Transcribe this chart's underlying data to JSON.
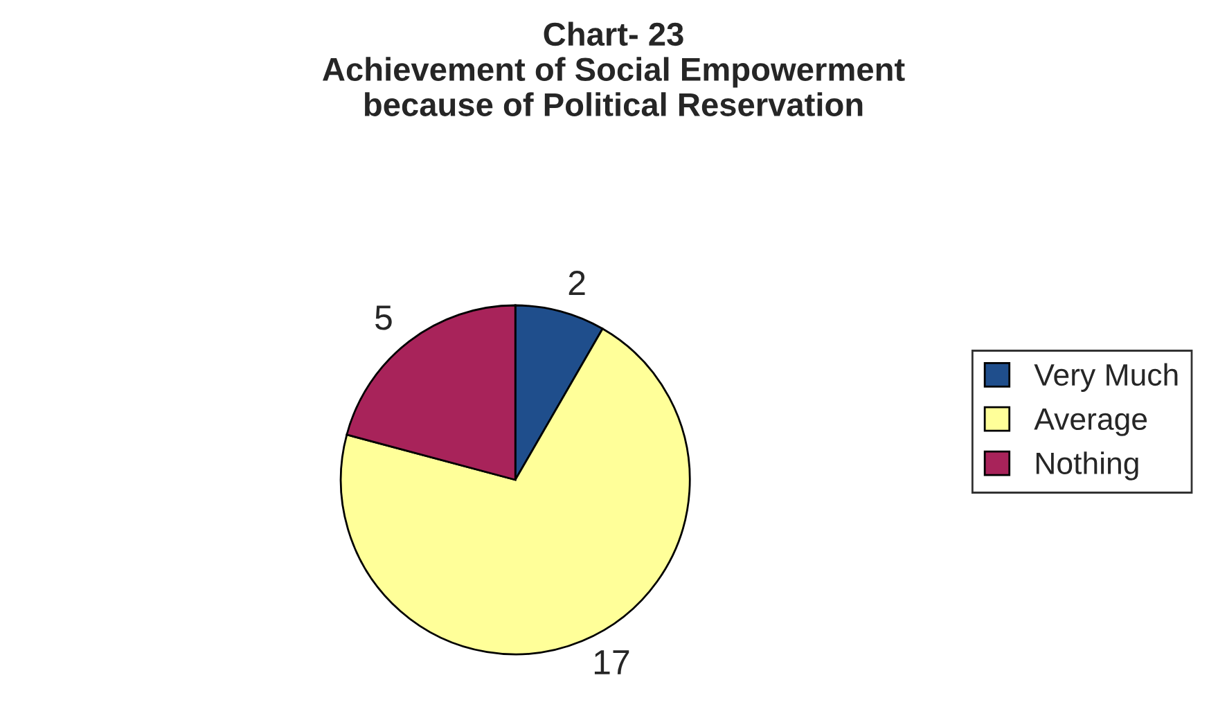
{
  "chart_data": {
    "type": "pie",
    "title": "Chart- 23\nAchievement of Social Empowerment\nbecause of Political Reservation",
    "categories": [
      "Very Much",
      "Average",
      "Nothing"
    ],
    "values": [
      2,
      17,
      5
    ],
    "colors": [
      "#1f4e8c",
      "#ffff99",
      "#a8235a"
    ],
    "data_labels": true,
    "legend": "right"
  }
}
